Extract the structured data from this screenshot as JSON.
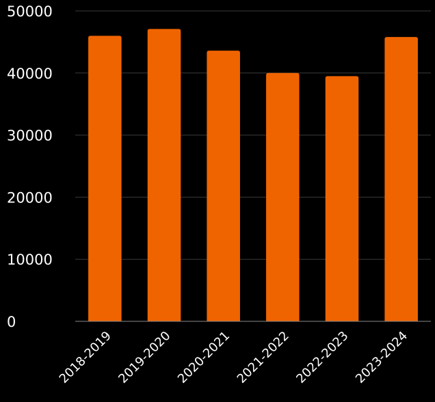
{
  "chart_data": {
    "type": "bar",
    "categories": [
      "2018-2019",
      "2019-2020",
      "2020-2021",
      "2021-2022",
      "2022-2023",
      "2023-2024"
    ],
    "values": [
      46000,
      47100,
      43600,
      40000,
      39500,
      45800
    ],
    "title": "",
    "xlabel": "",
    "ylabel": "",
    "ylim": [
      0,
      50000
    ],
    "yticks": [
      0,
      10000,
      20000,
      30000,
      40000,
      50000
    ],
    "grid": true,
    "legend": "none",
    "bar_color": "#f06400",
    "background_color": "#000000"
  }
}
